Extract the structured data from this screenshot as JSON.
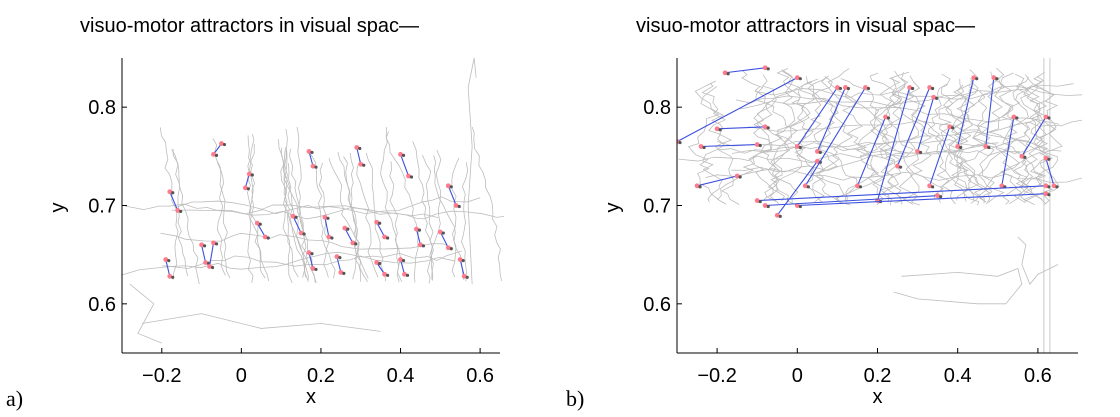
{
  "figure": {
    "panel_letters": [
      "a)",
      "b)"
    ]
  },
  "chart_data": [
    {
      "type": "scatter",
      "title": "visuo-motor attractors in visual spac—",
      "xlabel": "x",
      "ylabel": "y",
      "xlim": [
        -0.3,
        0.65
      ],
      "ylim": [
        0.55,
        0.85
      ],
      "xticks": [
        "-0.2",
        "0",
        "0.2",
        "0.4",
        "0.6"
      ],
      "xtick_values": [
        -0.2,
        0,
        0.2,
        0.4,
        0.6
      ],
      "yticks": [
        "0.6",
        "0.7",
        "0.8"
      ],
      "ytick_values": [
        0.6,
        0.7,
        0.8
      ],
      "grid": false,
      "colors": {
        "trajectory": "#bdbdbd",
        "link": "#3b4fe0",
        "attractor": "#ff7a8a",
        "axis": "#000000"
      },
      "attractor_pairs": [
        [
          [
            -0.05,
            0.763
          ],
          [
            -0.07,
            0.752
          ]
        ],
        [
          [
            -0.18,
            0.714
          ],
          [
            -0.16,
            0.695
          ]
        ],
        [
          [
            0.02,
            0.732
          ],
          [
            0.01,
            0.718
          ]
        ],
        [
          [
            0.17,
            0.755
          ],
          [
            0.18,
            0.74
          ]
        ],
        [
          [
            0.29,
            0.759
          ],
          [
            0.3,
            0.742
          ]
        ],
        [
          [
            0.4,
            0.752
          ],
          [
            0.42,
            0.73
          ]
        ],
        [
          [
            0.52,
            0.72
          ],
          [
            0.54,
            0.7
          ]
        ],
        [
          [
            -0.1,
            0.66
          ],
          [
            -0.09,
            0.642
          ]
        ],
        [
          [
            -0.19,
            0.645
          ],
          [
            -0.18,
            0.628
          ]
        ],
        [
          [
            0.04,
            0.682
          ],
          [
            0.06,
            0.668
          ]
        ],
        [
          [
            0.13,
            0.689
          ],
          [
            0.15,
            0.672
          ]
        ],
        [
          [
            0.21,
            0.688
          ],
          [
            0.22,
            0.668
          ]
        ],
        [
          [
            0.26,
            0.677
          ],
          [
            0.28,
            0.662
          ]
        ],
        [
          [
            0.34,
            0.683
          ],
          [
            0.36,
            0.668
          ]
        ],
        [
          [
            0.44,
            0.676
          ],
          [
            0.45,
            0.66
          ]
        ],
        [
          [
            0.5,
            0.673
          ],
          [
            0.52,
            0.657
          ]
        ],
        [
          [
            0.17,
            0.652
          ],
          [
            0.18,
            0.636
          ]
        ],
        [
          [
            0.24,
            0.648
          ],
          [
            0.25,
            0.632
          ]
        ],
        [
          [
            0.4,
            0.645
          ],
          [
            0.41,
            0.63
          ]
        ],
        [
          [
            0.55,
            0.645
          ],
          [
            0.56,
            0.628
          ]
        ],
        [
          [
            -0.08,
            0.638
          ],
          [
            -0.07,
            0.662
          ]
        ],
        [
          [
            0.34,
            0.642
          ],
          [
            0.36,
            0.63
          ]
        ]
      ]
    },
    {
      "type": "scatter",
      "title": "visuo-motor attractors in visual spac—",
      "xlabel": "x",
      "ylabel": "y",
      "xlim": [
        -0.3,
        0.7
      ],
      "ylim": [
        0.55,
        0.85
      ],
      "xticks": [
        "-0.2",
        "0",
        "0.2",
        "0.4",
        "0.6"
      ],
      "xtick_values": [
        -0.2,
        0,
        0.2,
        0.4,
        0.6
      ],
      "yticks": [
        "0.6",
        "0.7",
        "0.8"
      ],
      "ytick_values": [
        0.6,
        0.7,
        0.8
      ],
      "grid": false,
      "colors": {
        "trajectory": "#bdbdbd",
        "link": "#3b4fe0",
        "attractor": "#ff7a8a",
        "axis": "#000000"
      },
      "attractor_pairs": [
        [
          [
            -0.3,
            0.765
          ],
          [
            0.0,
            0.83
          ]
        ],
        [
          [
            -0.18,
            0.835
          ],
          [
            -0.08,
            0.84
          ]
        ],
        [
          [
            -0.25,
            0.72
          ],
          [
            -0.15,
            0.73
          ]
        ],
        [
          [
            -0.24,
            0.76
          ],
          [
            -0.1,
            0.762
          ]
        ],
        [
          [
            -0.2,
            0.778
          ],
          [
            -0.08,
            0.78
          ]
        ],
        [
          [
            0.0,
            0.76
          ],
          [
            0.1,
            0.82
          ]
        ],
        [
          [
            0.05,
            0.755
          ],
          [
            0.12,
            0.82
          ]
        ],
        [
          [
            -0.05,
            0.69
          ],
          [
            0.05,
            0.745
          ]
        ],
        [
          [
            0.02,
            0.72
          ],
          [
            0.17,
            0.82
          ]
        ],
        [
          [
            0.15,
            0.72
          ],
          [
            0.22,
            0.79
          ]
        ],
        [
          [
            0.2,
            0.705
          ],
          [
            0.28,
            0.82
          ]
        ],
        [
          [
            0.25,
            0.74
          ],
          [
            0.33,
            0.82
          ]
        ],
        [
          [
            0.3,
            0.755
          ],
          [
            0.34,
            0.81
          ]
        ],
        [
          [
            0.33,
            0.72
          ],
          [
            0.38,
            0.78
          ]
        ],
        [
          [
            0.4,
            0.76
          ],
          [
            0.44,
            0.83
          ]
        ],
        [
          [
            0.47,
            0.76
          ],
          [
            0.49,
            0.83
          ]
        ],
        [
          [
            0.51,
            0.72
          ],
          [
            0.54,
            0.79
          ]
        ],
        [
          [
            0.56,
            0.75
          ],
          [
            0.62,
            0.79
          ]
        ],
        [
          [
            0.62,
            0.748
          ],
          [
            0.64,
            0.72
          ]
        ],
        [
          [
            -0.1,
            0.705
          ],
          [
            0.62,
            0.72
          ]
        ],
        [
          [
            0.0,
            0.7
          ],
          [
            0.62,
            0.712
          ]
        ],
        [
          [
            -0.08,
            0.7
          ],
          [
            0.35,
            0.71
          ]
        ]
      ]
    }
  ]
}
